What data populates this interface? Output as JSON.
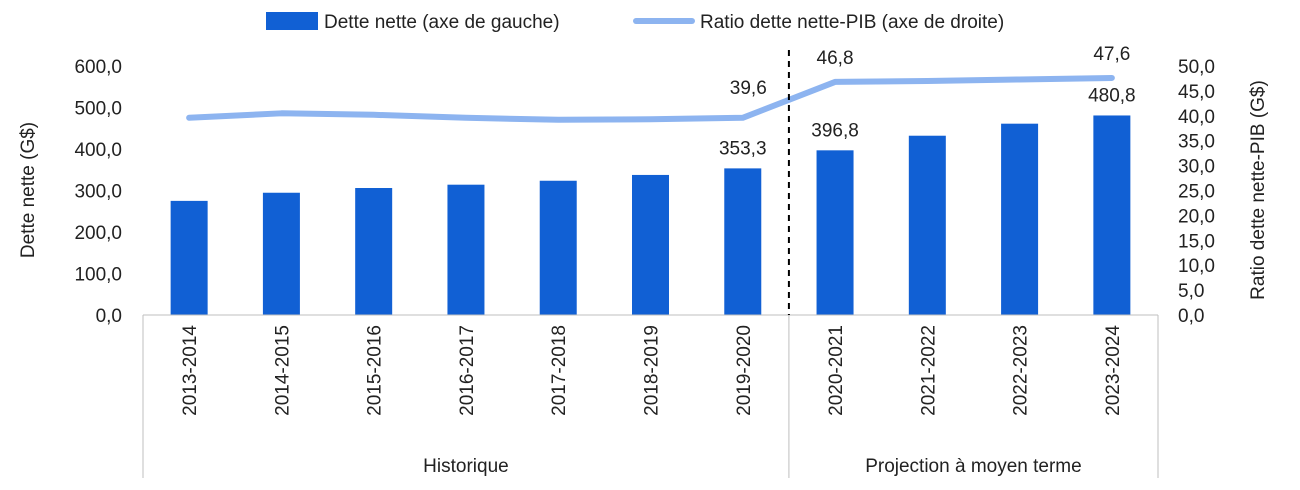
{
  "chart_data": {
    "type": "bar",
    "categories": [
      "2013-2014",
      "2014-2015",
      "2015-2016",
      "2016-2017",
      "2017-2018",
      "2018-2019",
      "2019-2020",
      "2020-2021",
      "2021-2022",
      "2022-2023",
      "2023-2024"
    ],
    "series": [
      {
        "name": "Dette nette (axe de gauche)",
        "type": "bar",
        "axis": "left",
        "color": "#1160D4",
        "values": [
          275.0,
          294.6,
          306.0,
          314.0,
          323.5,
          337.5,
          353.3,
          396.8,
          432.0,
          461.0,
          480.8
        ]
      },
      {
        "name": "Ratio dette nette-PIB (axe de droite)",
        "type": "line",
        "axis": "right",
        "color": "#8DB4F0",
        "values": [
          39.6,
          40.5,
          40.2,
          39.6,
          39.2,
          39.3,
          39.6,
          46.8,
          47.0,
          47.3,
          47.6
        ]
      }
    ],
    "data_labels": {
      "bars": [
        {
          "index": 6,
          "text": "353,3"
        },
        {
          "index": 7,
          "text": "396,8"
        },
        {
          "index": 10,
          "text": "480,8"
        }
      ],
      "line": [
        {
          "index": 6,
          "text": "39,6"
        },
        {
          "index": 7,
          "text": "46,8"
        },
        {
          "index": 10,
          "text": "47,6"
        }
      ]
    },
    "ylabel_left": "Dette nette (G$)",
    "ylabel_right": "Ratio dette nette-PIB (G$)",
    "ylim_left": [
      0,
      600
    ],
    "ylim_right": [
      0,
      50
    ],
    "yticks_left": [
      "0,0",
      "100,0",
      "200,0",
      "300,0",
      "400,0",
      "500,0",
      "600,0"
    ],
    "yticks_right": [
      "0,0",
      "5,0",
      "10,0",
      "15,0",
      "20,0",
      "25,0",
      "30,0",
      "35,0",
      "40,0",
      "45,0",
      "50,0"
    ],
    "groups": [
      {
        "label": "Historique",
        "from": 0,
        "to": 6
      },
      {
        "label": "Projection à moyen terme",
        "from": 7,
        "to": 10
      }
    ],
    "legend_position": "top",
    "grid": false
  }
}
